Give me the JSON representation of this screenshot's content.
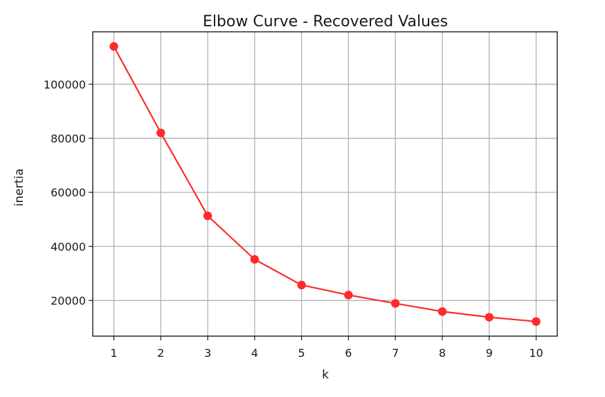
{
  "chart_data": {
    "type": "line",
    "title": "Elbow Curve - Recovered Values",
    "xlabel": "k",
    "ylabel": "inertia",
    "x": [
      1,
      2,
      3,
      4,
      5,
      6,
      7,
      8,
      9,
      10
    ],
    "series": [
      {
        "values": [
          114000,
          82000,
          51300,
          35200,
          25700,
          22000,
          18900,
          15900,
          13800,
          12200
        ],
        "color": "#ff2a2a",
        "marker": "circle"
      }
    ],
    "xticks": [
      "1",
      "2",
      "3",
      "4",
      "5",
      "6",
      "7",
      "8",
      "9",
      "10"
    ],
    "yticks": [
      "20000",
      "40000",
      "60000",
      "80000",
      "100000"
    ],
    "xlim": [
      0.55,
      10.45
    ],
    "ylim": [
      6800,
      119400
    ],
    "grid": true
  }
}
